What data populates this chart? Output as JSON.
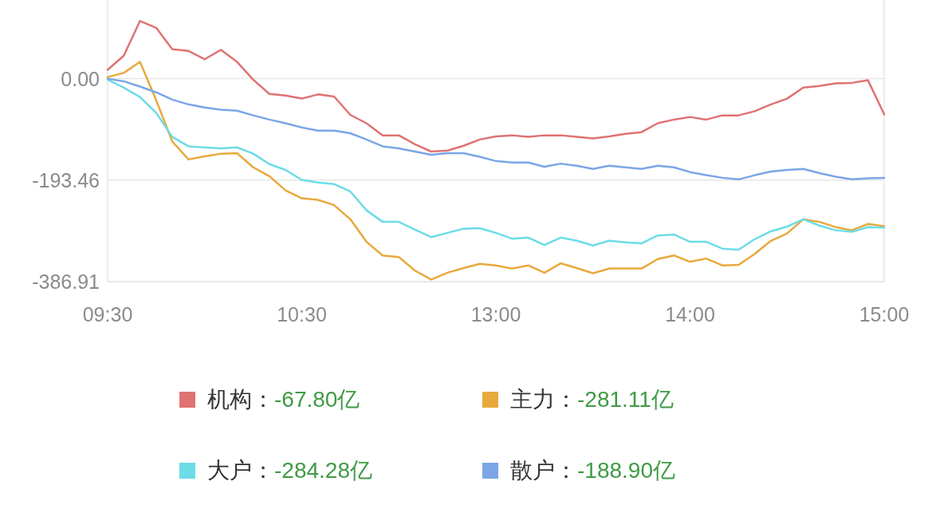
{
  "chart_data": {
    "type": "line",
    "categories": [
      "09:30",
      null,
      null,
      null,
      null,
      null,
      null,
      null,
      null,
      null,
      null,
      null,
      "10:30",
      null,
      null,
      null,
      null,
      null,
      null,
      null,
      null,
      null,
      null,
      null,
      "13:00",
      null,
      null,
      null,
      null,
      null,
      null,
      null,
      null,
      null,
      null,
      null,
      "14:00",
      null,
      null,
      null,
      null,
      null,
      null,
      null,
      null,
      null,
      null,
      null,
      "15:00"
    ],
    "series": [
      {
        "name": "机构：",
        "color": "#e07272",
        "values": [
          17,
          44,
          110,
          97,
          56,
          53,
          37,
          55,
          32,
          -2,
          -29,
          -32,
          -38,
          -30,
          -34,
          -69,
          -85,
          -108,
          -108,
          -125,
          -139,
          -137,
          -128,
          -116,
          -110,
          -108,
          -111,
          -108,
          -108,
          -111,
          -114,
          -110,
          -105,
          -102,
          -85,
          -78,
          -73,
          -78,
          -70,
          -70,
          -62,
          -49,
          -38,
          -17,
          -14,
          -9,
          -8,
          -3,
          -68
        ]
      },
      {
        "name": "主力：",
        "color": "#e8a93c",
        "values": [
          3,
          11,
          32,
          -41,
          -120,
          -154,
          -148,
          -143,
          -142,
          -169,
          -186,
          -213,
          -228,
          -231,
          -241,
          -268,
          -311,
          -337,
          -340,
          -366,
          -383,
          -370,
          -361,
          -353,
          -356,
          -362,
          -356,
          -370,
          -352,
          -361,
          -371,
          -362,
          -362,
          -362,
          -344,
          -337,
          -349,
          -343,
          -356,
          -355,
          -334,
          -309,
          -295,
          -268,
          -273,
          -283,
          -289,
          -277,
          -281
        ]
      },
      {
        "name": "大户：",
        "color": "#6cdce8",
        "values": [
          -2,
          -17,
          -35,
          -65,
          -111,
          -129,
          -131,
          -133,
          -131,
          -143,
          -163,
          -174,
          -193,
          -198,
          -201,
          -215,
          -251,
          -273,
          -273,
          -288,
          -302,
          -294,
          -286,
          -285,
          -294,
          -305,
          -303,
          -317,
          -303,
          -309,
          -318,
          -309,
          -312,
          -314,
          -299,
          -297,
          -311,
          -311,
          -324,
          -326,
          -306,
          -291,
          -282,
          -268,
          -280,
          -289,
          -292,
          -283,
          -284
        ]
      },
      {
        "name": "散户：",
        "color": "#7ba6e6",
        "values": [
          0,
          -5,
          -15,
          -26,
          -40,
          -49,
          -55,
          -59,
          -61,
          -70,
          -78,
          -85,
          -93,
          -99,
          -99,
          -104,
          -116,
          -129,
          -133,
          -139,
          -145,
          -142,
          -142,
          -149,
          -157,
          -160,
          -160,
          -168,
          -162,
          -166,
          -172,
          -166,
          -169,
          -172,
          -166,
          -169,
          -178,
          -184,
          -189,
          -192,
          -184,
          -177,
          -174,
          -172,
          -180,
          -187,
          -192,
          -190,
          -189
        ]
      }
    ],
    "ylim": [
      -386.91,
      150
    ],
    "yticks": [
      {
        "value": 0,
        "label": "0.00"
      },
      {
        "value": -193.46,
        "label": "-193.46"
      },
      {
        "value": -386.91,
        "label": "-386.91"
      }
    ],
    "grid": "y",
    "legend": "bottom",
    "annotations": [
      "-67.80亿",
      "-281.11亿",
      "-284.28亿",
      "-188.90亿"
    ]
  }
}
